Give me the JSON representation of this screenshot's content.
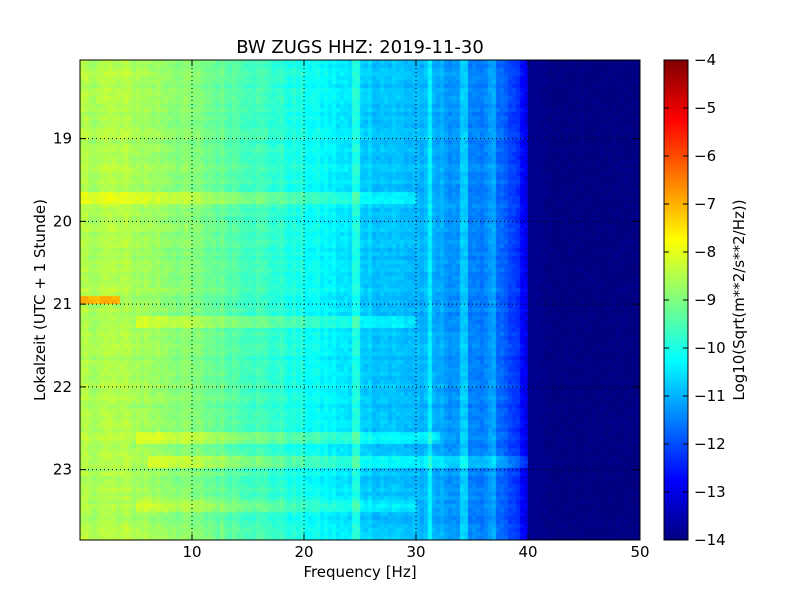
{
  "chart_data": {
    "type": "heatmap",
    "title": "BW ZUGS HHZ: 2019-11-30",
    "xlabel": "Frequency [Hz]",
    "ylabel": "Lokalzeit (UTC + 1 Stunde)",
    "xlim": [
      0,
      50
    ],
    "ylim": [
      18.05,
      23.85
    ],
    "y_inverted": true,
    "grid": true,
    "x_ticks": [
      10,
      20,
      30,
      40,
      50
    ],
    "y_ticks": [
      19,
      20,
      21,
      22,
      23
    ],
    "colorbar": {
      "label": "Log10(Sqrt(m**2/s**2/Hz))",
      "range": [
        -14,
        -4
      ],
      "ticks": [
        -4,
        -5,
        -6,
        -7,
        -8,
        -9,
        -10,
        -11,
        -12,
        -13,
        -14
      ],
      "colormap": "jet",
      "position": "right"
    },
    "colormap_stops": [
      "#00007f",
      "#0000ff",
      "#007fff",
      "#00ffff",
      "#7fff7f",
      "#ffff00",
      "#ff7f00",
      "#ff0000",
      "#7f0000"
    ],
    "frequency_profile": {
      "frequency_hz": [
        0,
        2,
        5,
        8,
        10,
        13,
        15,
        18,
        20,
        22,
        24,
        26,
        28,
        30,
        32,
        34,
        36,
        37,
        38,
        39,
        40,
        41,
        42,
        45,
        50
      ],
      "log10_psd": [
        -8.55,
        -8.5,
        -8.6,
        -8.8,
        -9.0,
        -9.3,
        -9.5,
        -9.85,
        -10.1,
        -10.3,
        -10.55,
        -10.75,
        -10.85,
        -10.95,
        -11.1,
        -11.3,
        -11.5,
        -11.7,
        -11.95,
        -12.3,
        -13.1,
        -13.8,
        -14.0,
        -14.0,
        -14.0
      ]
    },
    "features": [
      {
        "type": "horizontal_band",
        "time": 19.7,
        "f_range": [
          0,
          30
        ],
        "delta": 0.55
      },
      {
        "type": "horizontal_band",
        "time": 20.95,
        "f_range": [
          0,
          3.5
        ],
        "delta": 1.6
      },
      {
        "type": "horizontal_band",
        "time": 21.2,
        "f_range": [
          5,
          30
        ],
        "delta": 0.5
      },
      {
        "type": "horizontal_band",
        "time": 22.6,
        "f_range": [
          5,
          32
        ],
        "delta": 0.5
      },
      {
        "type": "horizontal_band",
        "time": 22.9,
        "f_range": [
          6,
          42
        ],
        "delta": 0.55
      },
      {
        "type": "horizontal_band",
        "time": 23.45,
        "f_range": [
          5,
          30
        ],
        "delta": 0.4
      },
      {
        "type": "vertical_line",
        "frequency": 24.7,
        "delta": 0.6
      },
      {
        "type": "vertical_line",
        "frequency": 31.2,
        "delta": 0.55
      },
      {
        "type": "vertical_line",
        "frequency": 34.3,
        "delta": 0.45
      },
      {
        "type": "vertical_line",
        "frequency": 36.8,
        "delta": 0.45
      }
    ]
  }
}
